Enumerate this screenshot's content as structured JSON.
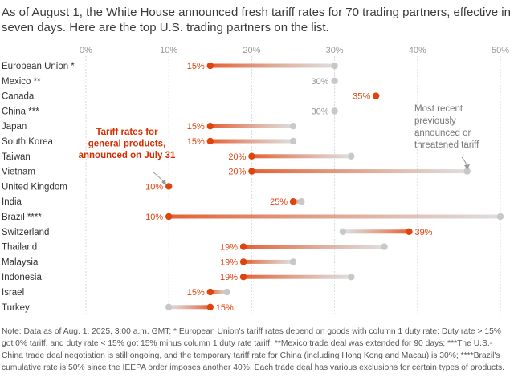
{
  "subtitle": "As of August 1, the White House announced fresh tariff rates for 70 trading partners, effective in seven days. Here are the top U.S. trading partners on the list.",
  "colors": {
    "current": "#e0440e",
    "previous": "#c8c8c8",
    "label_red": "#d62f00",
    "grid": "#d9d9d9"
  },
  "chart_data": {
    "type": "dumbbell",
    "xlim": [
      0,
      50
    ],
    "xticks": [
      "0%",
      "10%",
      "20%",
      "30%",
      "40%",
      "50%"
    ],
    "series": [
      {
        "name": "Tariff rates for general products, announced on July 31"
      },
      {
        "name": "Most recent previously announced or threatened tariff"
      }
    ],
    "rows": [
      {
        "country": "European Union *",
        "new": 15,
        "prev": 30,
        "label": "15%"
      },
      {
        "country": "Mexico **",
        "new": 30,
        "prev": 30,
        "label": "30%"
      },
      {
        "country": "Canada",
        "new": 35,
        "prev": 35,
        "label": "35%"
      },
      {
        "country": "China ***",
        "new": 30,
        "prev": 30,
        "label": "30%"
      },
      {
        "country": "Japan",
        "new": 15,
        "prev": 25,
        "label": "15%"
      },
      {
        "country": "South Korea",
        "new": 15,
        "prev": 25,
        "label": "15%"
      },
      {
        "country": "Taiwan",
        "new": 20,
        "prev": 32,
        "label": "20%"
      },
      {
        "country": "Vietnam",
        "new": 20,
        "prev": 46,
        "label": "20%"
      },
      {
        "country": "United Kingdom",
        "new": 10,
        "prev": 10,
        "label": "10%"
      },
      {
        "country": "India",
        "new": 25,
        "prev": 26,
        "label": "25%"
      },
      {
        "country": "Brazil ****",
        "new": 10,
        "prev": 50,
        "label": "10%"
      },
      {
        "country": "Switzerland",
        "new": 39,
        "prev": 31,
        "label": "39%"
      },
      {
        "country": "Thailand",
        "new": 19,
        "prev": 36,
        "label": "19%"
      },
      {
        "country": "Malaysia",
        "new": 19,
        "prev": 25,
        "label": "19%"
      },
      {
        "country": "Indonesia",
        "new": 19,
        "prev": 32,
        "label": "19%"
      },
      {
        "country": "Israel",
        "new": 15,
        "prev": 17,
        "label": "15%"
      },
      {
        "country": "Turkey",
        "new": 15,
        "prev": 10,
        "label": "15%"
      }
    ],
    "annotations": {
      "new": [
        "Tariff rates for",
        "general products,",
        "announced on July 31"
      ],
      "prev": [
        "Most recent",
        "previously",
        "announced or",
        "threatened tariff"
      ]
    }
  },
  "note": "Note: Data as of Aug. 1, 2025, 3:00 a.m. GMT; * European Union's tariff rates depend on goods with column 1 duty rate: Duty rate > 15% got 0% tariff, and duty rate < 15% got 15% minus column 1 duty rate tariff; **Mexico trade deal was extended for 90 days; ***The U.S.-China trade deal negotiation is still ongoing, and the temporary tariff rate for China (including Hong Kong and Macau) is 30%; ****Brazil's cumulative rate is 50% since the IEEPA order imposes another 40%; Each trade deal has various exclusions for certain types of products."
}
